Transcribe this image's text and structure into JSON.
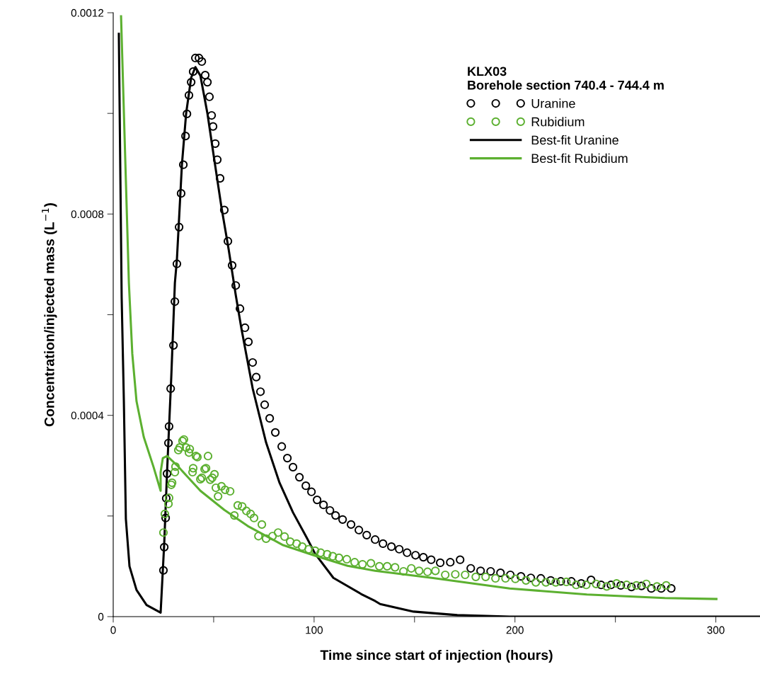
{
  "chart_data": {
    "type": "scatter",
    "xlabel": "Time since start of injection (hours)",
    "ylabel": "Concentration/injected mass (L$^{−1}$)",
    "legend_title": "KLX03\nBorehole section 740.4 - 744.4 m",
    "legend": "top right",
    "grid": false,
    "xlim": [
      0,
      322
    ],
    "xticks": [
      0,
      {
        "value": 50,
        "label": null
      },
      100,
      {
        "value": 150,
        "label": null
      },
      200,
      {
        "value": 250,
        "label": null
      },
      300
    ],
    "ylim": [
      0,
      0.0012
    ],
    "yticks": [
      0,
      {
        "value": 0.0002,
        "label": null
      },
      0.0004,
      {
        "value": 0.0006,
        "label": null
      },
      0.0008,
      {
        "value": 0.001,
        "label": null
      },
      0.0012
    ],
    "series": [
      {
        "name": "Uranine",
        "marker": "circle",
        "color": "#000000",
        "x": [
          25.0,
          25.4,
          26.1,
          26.4,
          26.8,
          27.5,
          27.8,
          28.6,
          30.0,
          30.7,
          31.7,
          32.8,
          33.8,
          34.9,
          36.0,
          36.7,
          37.7,
          38.8,
          39.8,
          40.9,
          42.7,
          44.1,
          45.8,
          46.9,
          47.9,
          49.0,
          49.7,
          50.8,
          51.8,
          53.2,
          55.3,
          57.1,
          59.2,
          61.0,
          63.1,
          65.6,
          67.3,
          69.4,
          71.2,
          73.3,
          75.4,
          77.9,
          80.7,
          83.9,
          86.7,
          89.5,
          92.7,
          95.9,
          98.7,
          101.5,
          104.7,
          107.9,
          110.7,
          114.2,
          118.4,
          122.3,
          126.2,
          130.4,
          134.3,
          138.5,
          142.4,
          146.3,
          150.5,
          154.4,
          158.3,
          162.8,
          167.8,
          172.7,
          178.0,
          182.9,
          187.9,
          192.8,
          197.7,
          203.0,
          207.9,
          212.9,
          217.8,
          222.8,
          228.1,
          233.0,
          237.9,
          242.9,
          247.8,
          252.7,
          258.0,
          263.0,
          267.9,
          272.8,
          277.8
        ],
        "values": [
          9.2e-05,
          0.000138,
          0.000196,
          0.000235,
          0.000284,
          0.000345,
          0.000378,
          0.000453,
          0.000539,
          0.000626,
          0.000701,
          0.000774,
          0.000841,
          0.000898,
          0.000955,
          0.000999,
          0.001036,
          0.001062,
          0.001083,
          0.00111,
          0.00111,
          0.001103,
          0.001076,
          0.001062,
          0.001033,
          0.000996,
          0.000974,
          0.00094,
          0.000908,
          0.000871,
          0.000808,
          0.000746,
          0.000698,
          0.000658,
          0.000612,
          0.000574,
          0.000546,
          0.000505,
          0.000476,
          0.000447,
          0.000421,
          0.000394,
          0.000366,
          0.000338,
          0.000315,
          0.000297,
          0.000277,
          0.00026,
          0.000248,
          0.000232,
          0.000222,
          0.000211,
          0.000201,
          0.000193,
          0.000183,
          0.000172,
          0.000162,
          0.000153,
          0.000145,
          0.000139,
          0.000134,
          0.000127,
          0.000122,
          0.000118,
          0.000113,
          0.000107,
          0.000108,
          0.000113,
          9.6e-05,
          9.1e-05,
          9e-05,
          8.7e-05,
          8.3e-05,
          8e-05,
          7.7e-05,
          7.6e-05,
          7.2e-05,
          7e-05,
          7e-05,
          6.6e-05,
          7.3e-05,
          6.3e-05,
          6.3e-05,
          6.2e-05,
          5.9e-05,
          6.1e-05,
          5.6e-05,
          5.6e-05,
          5.6e-05
        ]
      },
      {
        "name": "Rubidium",
        "marker": "circle",
        "color": "#5cb030",
        "x": [
          25.0,
          25.7,
          27.5,
          27.8,
          28.9,
          29.3,
          30.7,
          31.0,
          32.4,
          33.1,
          34.5,
          35.2,
          36.3,
          37.7,
          38.1,
          39.5,
          39.8,
          41.2,
          41.9,
          43.4,
          44.1,
          45.5,
          46.2,
          47.2,
          48.3,
          49.3,
          50.4,
          51.1,
          52.2,
          53.9,
          55.7,
          58.2,
          60.3,
          62.0,
          64.2,
          66.3,
          68.4,
          70.1,
          72.3,
          74.0,
          76.1,
          79.3,
          82.1,
          85.3,
          88.1,
          91.3,
          94.1,
          97.3,
          100.5,
          103.3,
          106.5,
          109.3,
          112.4,
          116.3,
          120.2,
          124.1,
          128.3,
          132.5,
          136.4,
          140.3,
          144.5,
          148.4,
          152.3,
          156.5,
          160.4,
          165.3,
          170.3,
          175.2,
          180.5,
          185.4,
          190.3,
          195.3,
          200.2,
          205.5,
          210.4,
          215.4,
          220.3,
          225.6,
          230.5,
          235.5,
          240.4,
          245.7,
          250.6,
          255.6,
          260.5,
          265.4,
          270.7,
          275.3
        ],
        "values": [
          0.000167,
          0.000204,
          0.000224,
          0.000236,
          0.000262,
          0.000266,
          0.000287,
          0.000298,
          0.000331,
          0.000336,
          0.000349,
          0.000352,
          0.000336,
          0.000326,
          0.000333,
          0.000287,
          0.000295,
          0.000319,
          0.000317,
          0.000273,
          0.000276,
          0.000293,
          0.000295,
          0.000319,
          0.000272,
          0.000276,
          0.000283,
          0.000256,
          0.000239,
          0.000259,
          0.000252,
          0.000249,
          0.000201,
          0.000221,
          0.000219,
          0.00021,
          0.000204,
          0.000196,
          0.00016,
          0.000183,
          0.000155,
          0.00016,
          0.000167,
          0.000159,
          0.000149,
          0.000145,
          0.000139,
          0.000134,
          0.000131,
          0.000127,
          0.000124,
          0.00012,
          0.000117,
          0.000114,
          0.000108,
          0.000104,
          0.000106,
          0.0001,
          0.0001,
          9.8e-05,
          9e-05,
          9.6e-05,
          9.1e-05,
          8.9e-05,
          9.1e-05,
          8.3e-05,
          8.4e-05,
          8.3e-05,
          7.9e-05,
          7.9e-05,
          7.6e-05,
          7.6e-05,
          7.5e-05,
          7.2e-05,
          6.8e-05,
          6.8e-05,
          6.8e-05,
          6.9e-05,
          6.3e-05,
          6.3e-05,
          6.5e-05,
          6e-05,
          6.6e-05,
          6.3e-05,
          6.2e-05,
          6.5e-05,
          6e-05,
          6.2e-05
        ]
      },
      {
        "name": "Best-fit Uranine",
        "type": "line",
        "line_style": "solid",
        "color": "#000000",
        "x": [
          2.8,
          4.2,
          5.3,
          6.3,
          8.1,
          11.6,
          16.6,
          23.6,
          25.4,
          26.8,
          28.9,
          30.7,
          31.7,
          34.2,
          36.3,
          38.8,
          40.9,
          43.4,
          46.9,
          50.4,
          53.9,
          57.5,
          61.0,
          63.8,
          69.4,
          76.1,
          82.8,
          89.5,
          96.2,
          100.5,
          109.6,
          123.4,
          130.4,
          132.9,
          149.5,
          171.3,
          197.4,
          322
        ],
        "values": [
          0.001158,
          0.000635,
          0.000428,
          0.000194,
          0.0001,
          5.3e-05,
          2.3e-05,
          8e-06,
          0.000146,
          0.000287,
          0.000476,
          0.000663,
          0.000709,
          0.000898,
          0.001,
          0.001071,
          0.001092,
          0.001075,
          0.001,
          0.000906,
          0.000813,
          0.000729,
          0.000639,
          0.000573,
          0.000454,
          0.000346,
          0.000266,
          0.000207,
          0.000158,
          0.000125,
          7.7e-05,
          4.5e-05,
          3.1e-05,
          2.5e-05,
          1e-05,
          3e-06,
          0,
          0
        ]
      },
      {
        "name": "Best-fit Rubidium",
        "type": "line",
        "line_style": "solid",
        "color": "#5cb030",
        "x": [
          3.9,
          7.8,
          9.5,
          11.6,
          15.2,
          20.1,
          23.6,
          23.6,
          24.7,
          26.8,
          31.7,
          43.4,
          55.3,
          67.0,
          84.6,
          100.5,
          116.7,
          130.4,
          158.6,
          197.4,
          235.8,
          274.6,
          300.3
        ],
        "values": [
          0.001193,
          0.000663,
          0.000522,
          0.000428,
          0.000357,
          0.000297,
          0.00025,
          0.000287,
          0.000315,
          0.000319,
          0.000301,
          0.00025,
          0.000212,
          0.00018,
          0.000142,
          0.000121,
          0.000101,
          9.1e-05,
          7.7e-05,
          5.6e-05,
          4.4e-05,
          3.7e-05,
          3.5e-05
        ]
      }
    ]
  }
}
